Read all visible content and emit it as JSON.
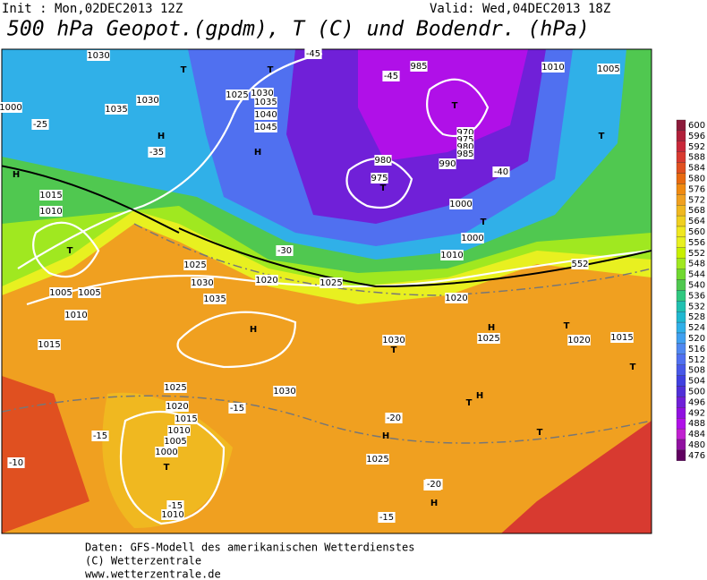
{
  "header": {
    "init": "Init : Mon,02DEC2013 12Z",
    "valid": "Valid: Wed,04DEC2013 18Z",
    "title": "500 hPa Geopot.(gpdm), T (C) und Bodendr. (hPa)"
  },
  "legend": {
    "levels": [
      600,
      596,
      592,
      588,
      584,
      580,
      576,
      572,
      568,
      564,
      560,
      556,
      552,
      548,
      544,
      540,
      536,
      532,
      528,
      524,
      520,
      516,
      512,
      508,
      504,
      500,
      496,
      492,
      488,
      484,
      480,
      476
    ],
    "colors": [
      "#8b1a3a",
      "#b0203a",
      "#c8283a",
      "#d83a30",
      "#e05020",
      "#e86a10",
      "#f08a10",
      "#f0a020",
      "#f0b820",
      "#f0d020",
      "#f0e820",
      "#e8f020",
      "#c8f000",
      "#a0e820",
      "#70d830",
      "#50c850",
      "#30c880",
      "#20c0b0",
      "#20b8d0",
      "#30b0e8",
      "#40a0f0",
      "#5088f0",
      "#5070f0",
      "#4858e8",
      "#4040e0",
      "#5030d8",
      "#7020d8",
      "#9010e0",
      "#b010e8",
      "#c020d0",
      "#9010a0",
      "#600060"
    ]
  },
  "map_labels": [
    "1030",
    "T",
    "1000",
    "H",
    "1035",
    "1030",
    "H",
    "1025",
    "1030",
    "1035",
    "1040",
    "1045",
    "H",
    "T",
    "-45",
    "985",
    "T",
    "1010",
    "1005",
    "T",
    "980",
    "975",
    "T",
    "970",
    "975",
    "980",
    "985",
    "990",
    "1000",
    "T",
    "1000",
    "1010",
    "-25",
    "-35",
    "-40",
    "-45",
    "-30",
    "1015",
    "1010",
    "T",
    "1005",
    "1025",
    "1020",
    "1030",
    "1035",
    "H",
    "1030",
    "T",
    "1015",
    "1010",
    "1005",
    "1025",
    "1020",
    "H",
    "H",
    "1025",
    "1030",
    "H",
    "T",
    "H",
    "T",
    "T",
    "1020",
    "1015",
    "T",
    "1025",
    "1020",
    "1015",
    "1010",
    "1005",
    "1000",
    "T",
    "-15",
    "1010",
    "-20",
    "-15",
    "-10",
    "-15",
    "H",
    "-20",
    "-20",
    "-15",
    "1025",
    "552"
  ],
  "footer": [
    "Daten: GFS-Modell des amerikanischen Wetterdienstes",
    "(C) Wetterzentrale",
    "www.wetterzentrale.de"
  ]
}
